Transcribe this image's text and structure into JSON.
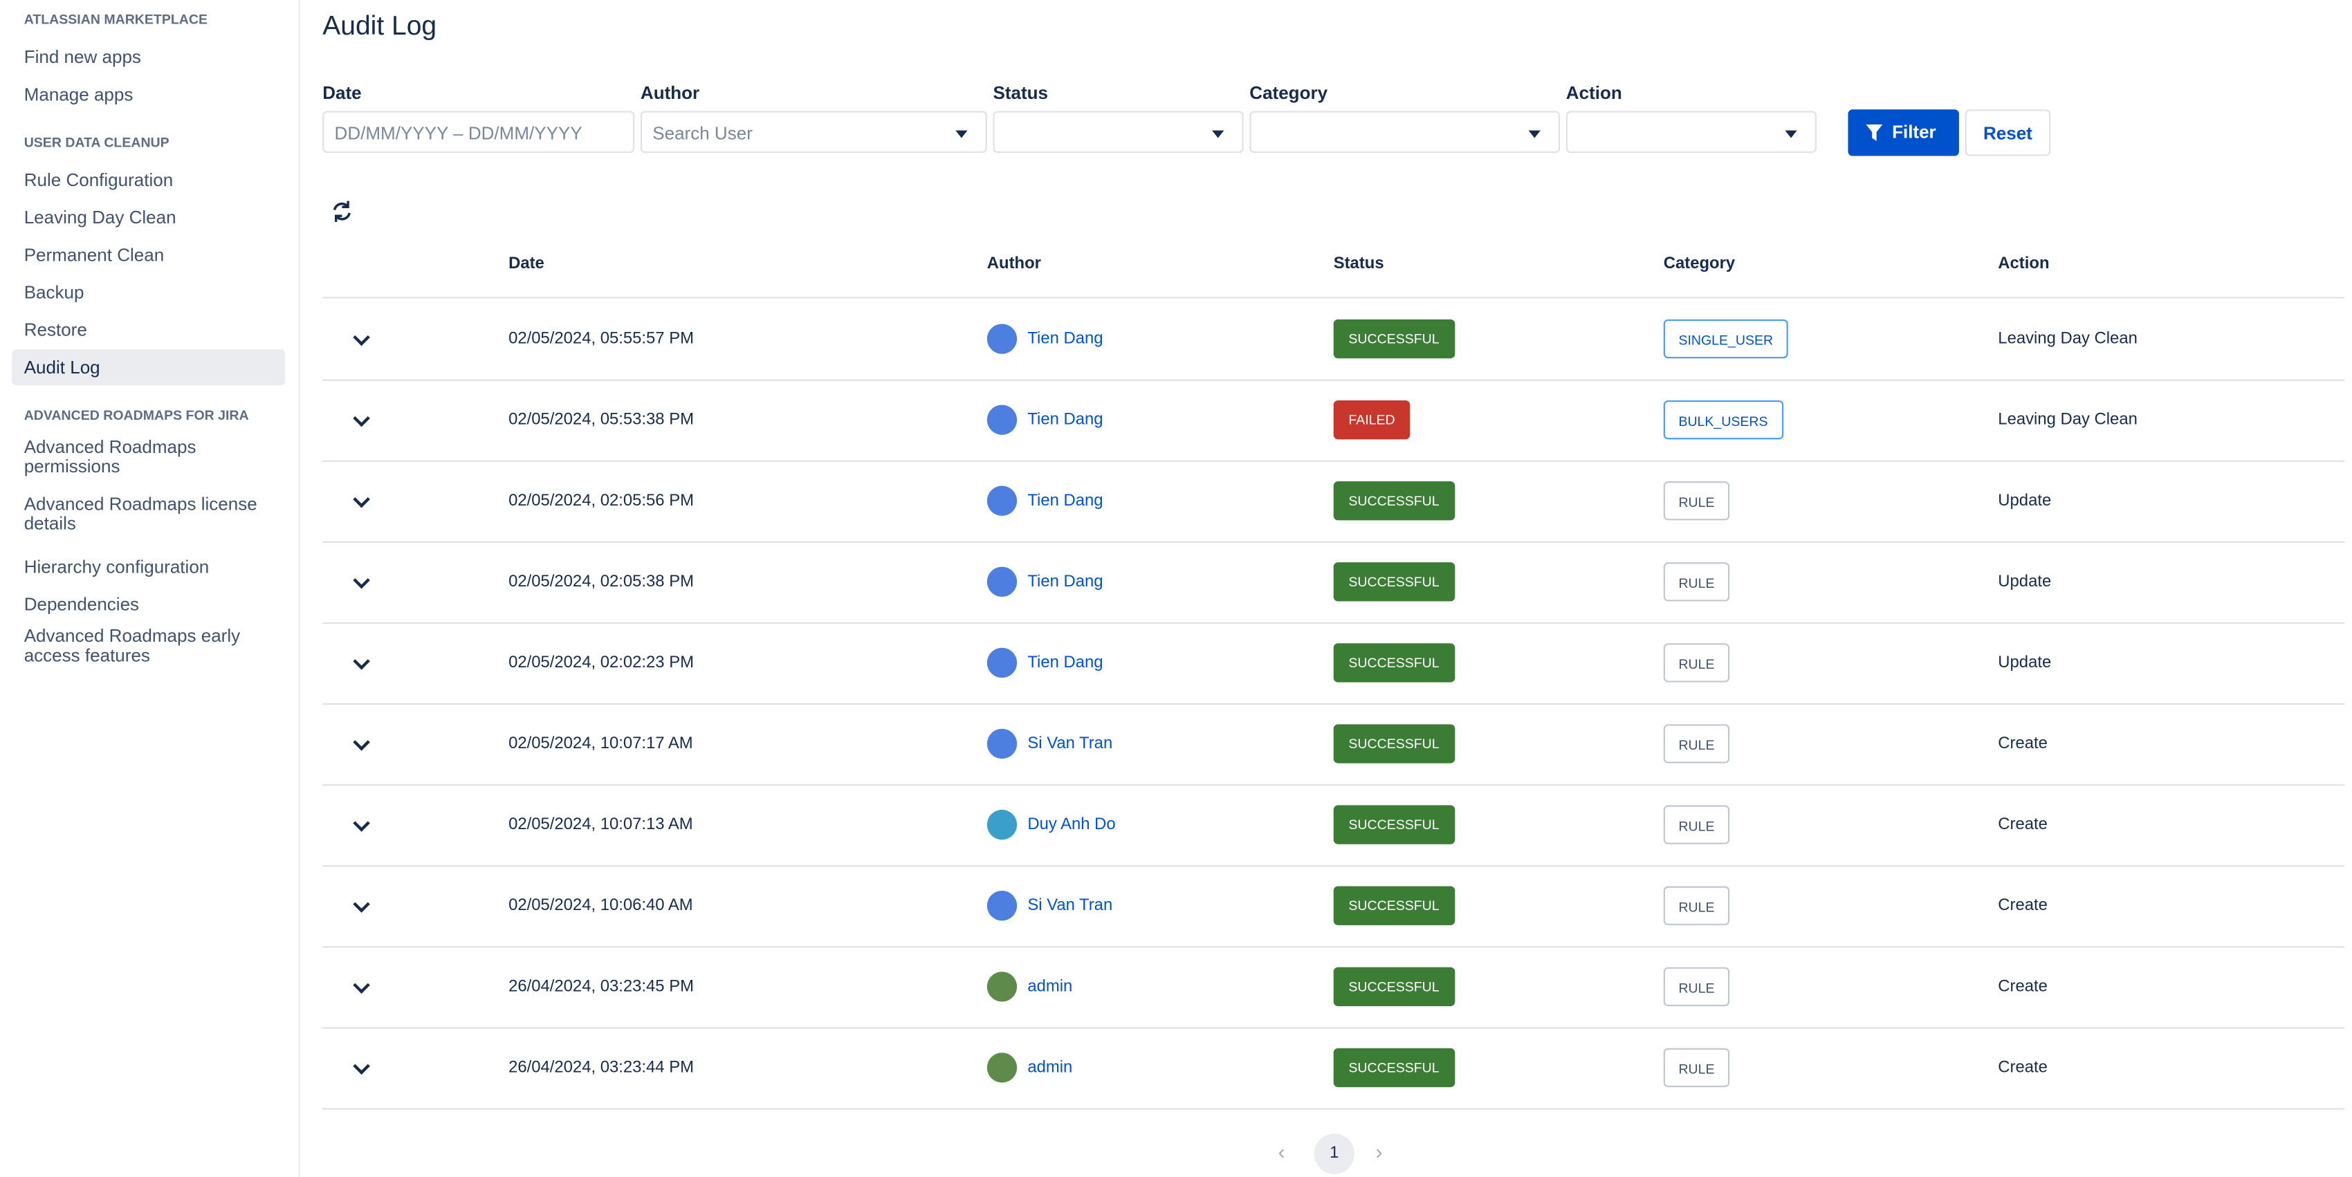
{
  "sidebar": {
    "sections": [
      {
        "heading": "ATLASSIAN MARKETPLACE",
        "items": [
          "Find new apps",
          "Manage apps"
        ]
      },
      {
        "heading": "USER DATA CLEANUP",
        "items": [
          "Rule Configuration",
          "Leaving Day Clean",
          "Permanent Clean",
          "Backup",
          "Restore",
          "Audit Log"
        ]
      },
      {
        "heading": "ADVANCED ROADMAPS FOR JIRA",
        "items": [
          "Advanced Roadmaps permissions",
          "Advanced Roadmaps license details",
          "Hierarchy configuration",
          "Dependencies",
          "Advanced Roadmaps early access features"
        ]
      }
    ]
  },
  "header": {
    "title": "Audit Log"
  },
  "filters": {
    "fields": [
      {
        "label": "Date",
        "placeholder": "DD/MM/YYYY – DD/MM/YYYY"
      },
      {
        "label": "Author",
        "placeholder": "Search User"
      },
      {
        "label": "Status"
      },
      {
        "label": "Category"
      },
      {
        "label": "Action"
      }
    ],
    "buttons": [
      "Filter",
      "Reset"
    ]
  },
  "table": {
    "headers": [
      "Date",
      "Author",
      "Status",
      "Category",
      "Action"
    ],
    "rows": [
      [
        "02/05/2024, 05:55:57 PM",
        "Tien Dang",
        "SUCCESSFUL",
        "SINGLE_USER",
        "Leaving Day Clean"
      ],
      [
        "02/05/2024, 05:53:38 PM",
        "Tien Dang",
        "FAILED",
        "BULK_USERS",
        "Leaving Day Clean"
      ],
      [
        "02/05/2024, 02:05:56 PM",
        "Tien Dang",
        "SUCCESSFUL",
        "RULE",
        "Update"
      ],
      [
        "02/05/2024, 02:05:38 PM",
        "Tien Dang",
        "SUCCESSFUL",
        "RULE",
        "Update"
      ],
      [
        "02/05/2024, 02:02:23 PM",
        "Tien Dang",
        "SUCCESSFUL",
        "RULE",
        "Update"
      ],
      [
        "02/05/2024, 10:07:17 AM",
        "Si Van Tran",
        "SUCCESSFUL",
        "RULE",
        "Create"
      ],
      [
        "02/05/2024, 10:07:13 AM",
        "Duy Anh Do",
        "SUCCESSFUL",
        "RULE",
        "Create"
      ],
      [
        "02/05/2024, 10:06:40 AM",
        "Si Van Tran",
        "SUCCESSFUL",
        "RULE",
        "Create"
      ],
      [
        "26/04/2024, 03:23:45 PM",
        "admin",
        "SUCCESSFUL",
        "RULE",
        "Create"
      ],
      [
        "26/04/2024, 03:23:44 PM",
        "admin",
        "SUCCESSFUL",
        "RULE",
        "Create"
      ]
    ]
  },
  "pagination": {
    "current": "1"
  }
}
